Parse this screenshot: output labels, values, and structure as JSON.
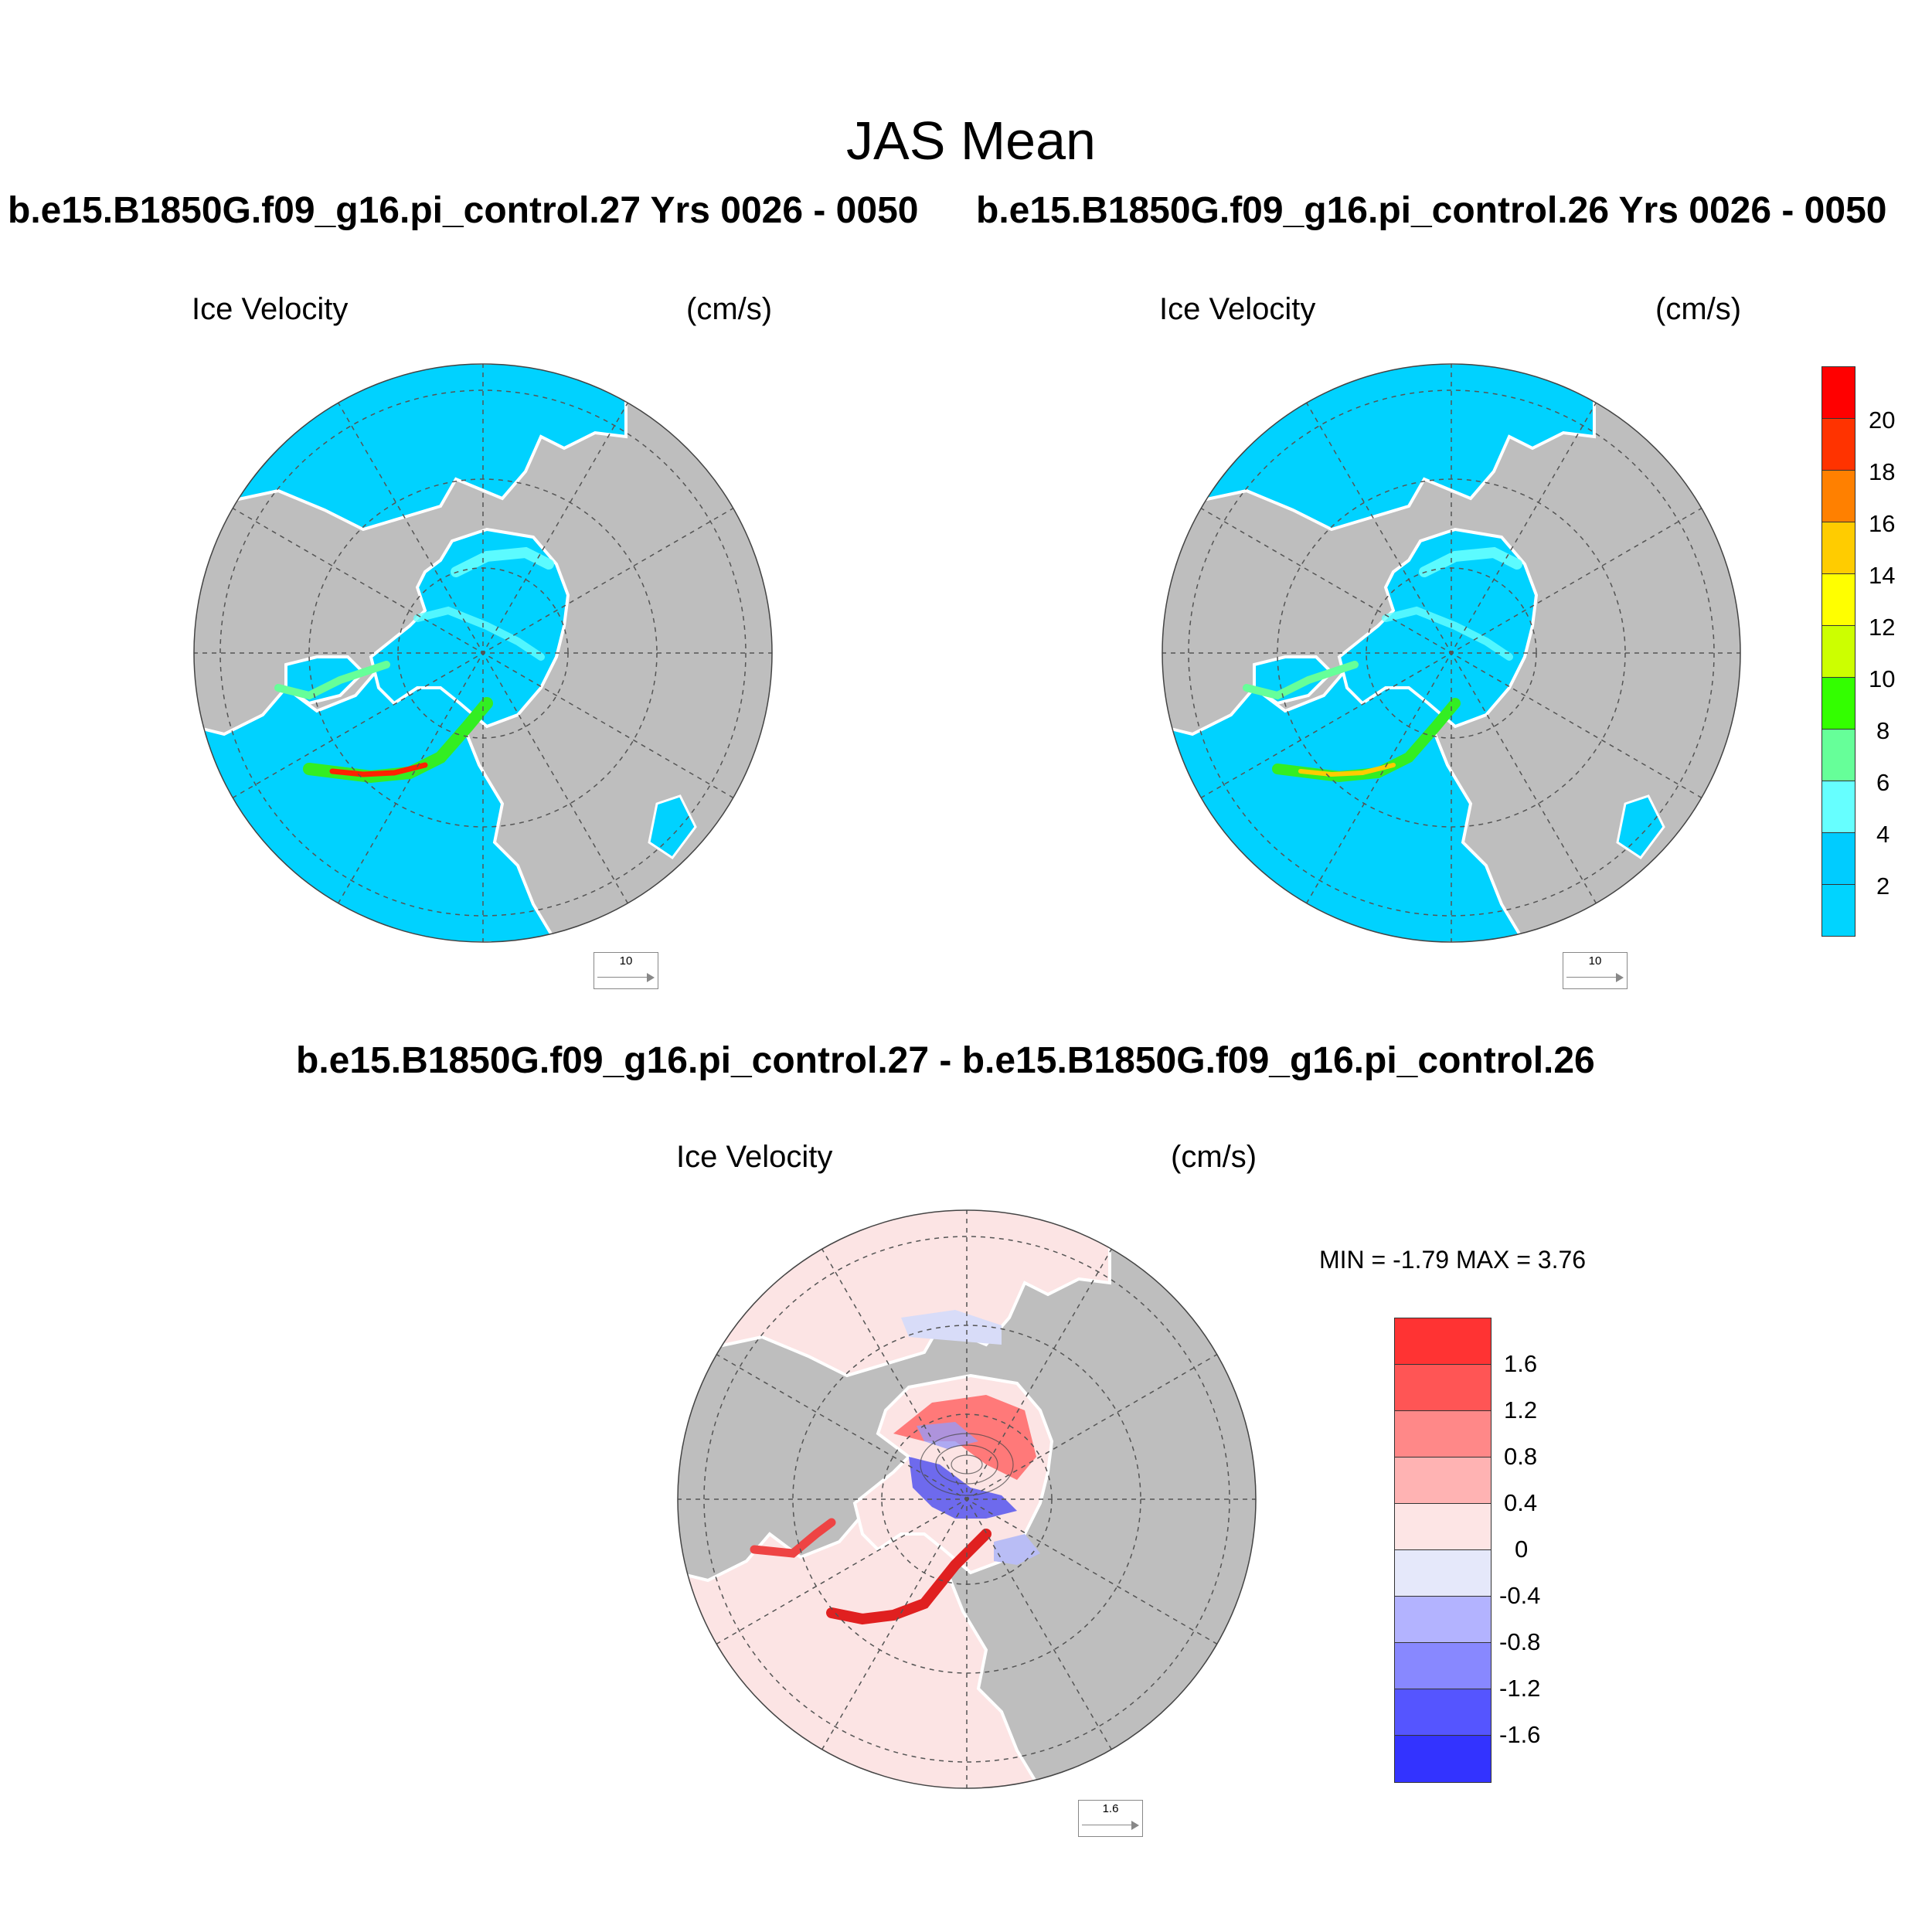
{
  "title": "JAS Mean",
  "panels": [
    {
      "case_title": "b.e15.B1850G.f09_g16.pi_control.27  Yrs 0026 - 0050",
      "left_label": "Ice Velocity",
      "right_label": "(cm/s)",
      "ref_vector": "10"
    },
    {
      "case_title": "b.e15.B1850G.f09_g16.pi_control.26  Yrs 0026 - 0050",
      "left_label": "Ice Velocity",
      "right_label": "(cm/s)",
      "ref_vector": "10"
    },
    {
      "case_title": "b.e15.B1850G.f09_g16.pi_control.27 - b.e15.B1850G.f09_g16.pi_control.26",
      "left_label": "Ice Velocity",
      "right_label": "(cm/s)",
      "ref_vector": "1.6",
      "minmax": "MIN =  -1.79 MAX =   3.76"
    }
  ],
  "colorbar_top": {
    "levels": [
      "20",
      "18",
      "16",
      "14",
      "12",
      "10",
      "8",
      "6",
      "4",
      "2"
    ],
    "colors": [
      "#ff0000",
      "#ff3300",
      "#ff8000",
      "#ffcc00",
      "#ffff00",
      "#ccff00",
      "#33ff00",
      "#66ff99",
      "#66ffff",
      "#00ccff",
      "#00d4ff"
    ]
  },
  "colorbar_diff": {
    "levels": [
      "1.6",
      "1.2",
      "0.8",
      "0.4",
      "0",
      "-0.4",
      "-0.8",
      "-1.2",
      "-1.6"
    ],
    "colors": [
      "#ff3333",
      "#ff5555",
      "#ff8888",
      "#ffb3b3",
      "#fde5e5",
      "#e5e8fa",
      "#b3b3ff",
      "#8888ff",
      "#5555ff",
      "#3333ff"
    ]
  },
  "colors": {
    "ocean": "#00d2ff",
    "land": "#bebebe",
    "coast": "#ffffff",
    "diff_ocean": "#fce4e4"
  }
}
